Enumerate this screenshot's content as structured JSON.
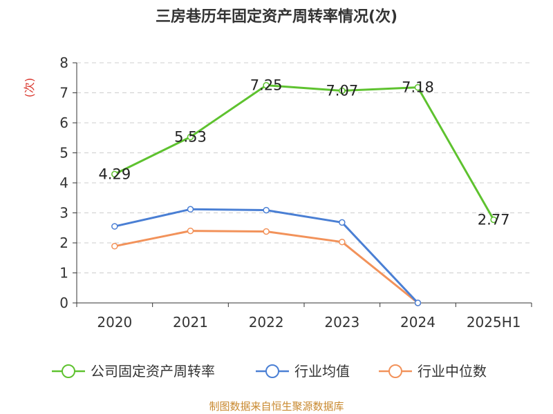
{
  "title": "三房巷历年固定资产周转率情况(次)",
  "source": "制图数据来自恒生聚源数据库",
  "colors": {
    "company": "#5ec22f",
    "industry_avg": "#4a7fd4",
    "industry_median": "#f2925a",
    "ylabel": "#d9342b",
    "source": "#c8882e",
    "grid": "#cccccc",
    "axis": "#333333"
  },
  "chart_data": {
    "type": "line",
    "title": "三房巷历年固定资产周转率情况(次)",
    "ylabel": "(次)",
    "xlabel": "",
    "categories": [
      "2020",
      "2021",
      "2022",
      "2023",
      "2024",
      "2025H1"
    ],
    "ylim": [
      0,
      8
    ],
    "yticks": [
      0,
      1,
      2,
      3,
      4,
      5,
      6,
      7,
      8
    ],
    "grid": true,
    "legend_position": "bottom",
    "series": [
      {
        "name": "公司固定资产周转率",
        "color": "#5ec22f",
        "values": [
          4.29,
          5.53,
          7.25,
          7.07,
          7.18,
          2.77
        ],
        "labels": [
          "4.29",
          "5.53",
          "7.25",
          "7.07",
          "7.18",
          "2.77"
        ]
      },
      {
        "name": "行业均值",
        "color": "#4a7fd4",
        "values": [
          2.55,
          3.12,
          3.09,
          2.68,
          0.0,
          null
        ]
      },
      {
        "name": "行业中位数",
        "color": "#f2925a",
        "values": [
          1.89,
          2.4,
          2.38,
          2.03,
          0.0,
          null
        ]
      }
    ]
  }
}
